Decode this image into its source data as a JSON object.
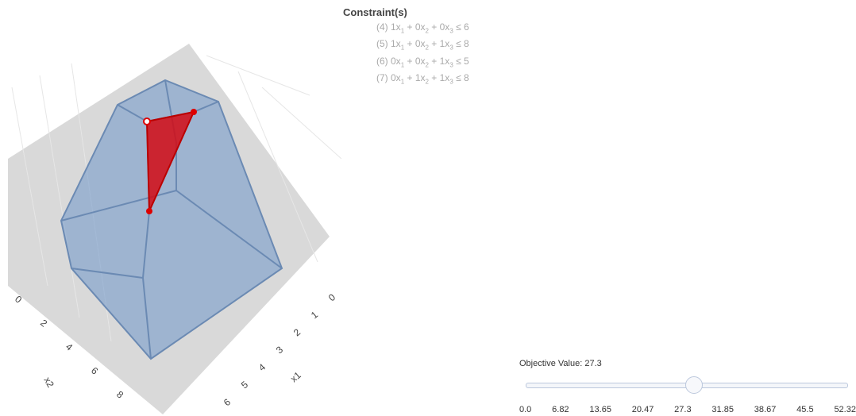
{
  "constraints": {
    "title": "Constraint(s)",
    "items": [
      {
        "parts": [
          "(4) 1x",
          "1",
          " + 0x",
          "2",
          " + 0x",
          "3",
          " ≤ 6"
        ]
      },
      {
        "parts": [
          "(5) 1x",
          "1",
          " + 0x",
          "2",
          " + 1x",
          "3",
          " ≤ 8"
        ]
      },
      {
        "parts": [
          "(6) 0x",
          "1",
          " + 0x",
          "2",
          " + 1x",
          "3",
          " ≤ 5"
        ]
      },
      {
        "parts": [
          "(7) 0x",
          "1",
          " + 1x",
          "2",
          " + 1x",
          "3",
          " ≤ 8"
        ]
      }
    ]
  },
  "plot": {
    "x2_axis": {
      "ticks": [
        "0",
        "2",
        "4",
        "6",
        "8"
      ],
      "title": "x2"
    },
    "x1_axis": {
      "ticks": [
        "0",
        "1",
        "2",
        "3",
        "4",
        "5",
        "6"
      ],
      "title": "x1"
    }
  },
  "slider": {
    "label": "Objective Value: 27.3",
    "value": 27.3,
    "min": 0,
    "max": 52.32,
    "ticks": [
      "0.0",
      "6.82",
      "13.65",
      "20.47",
      "27.3",
      "31.85",
      "38.67",
      "45.5",
      "52.32"
    ]
  }
}
